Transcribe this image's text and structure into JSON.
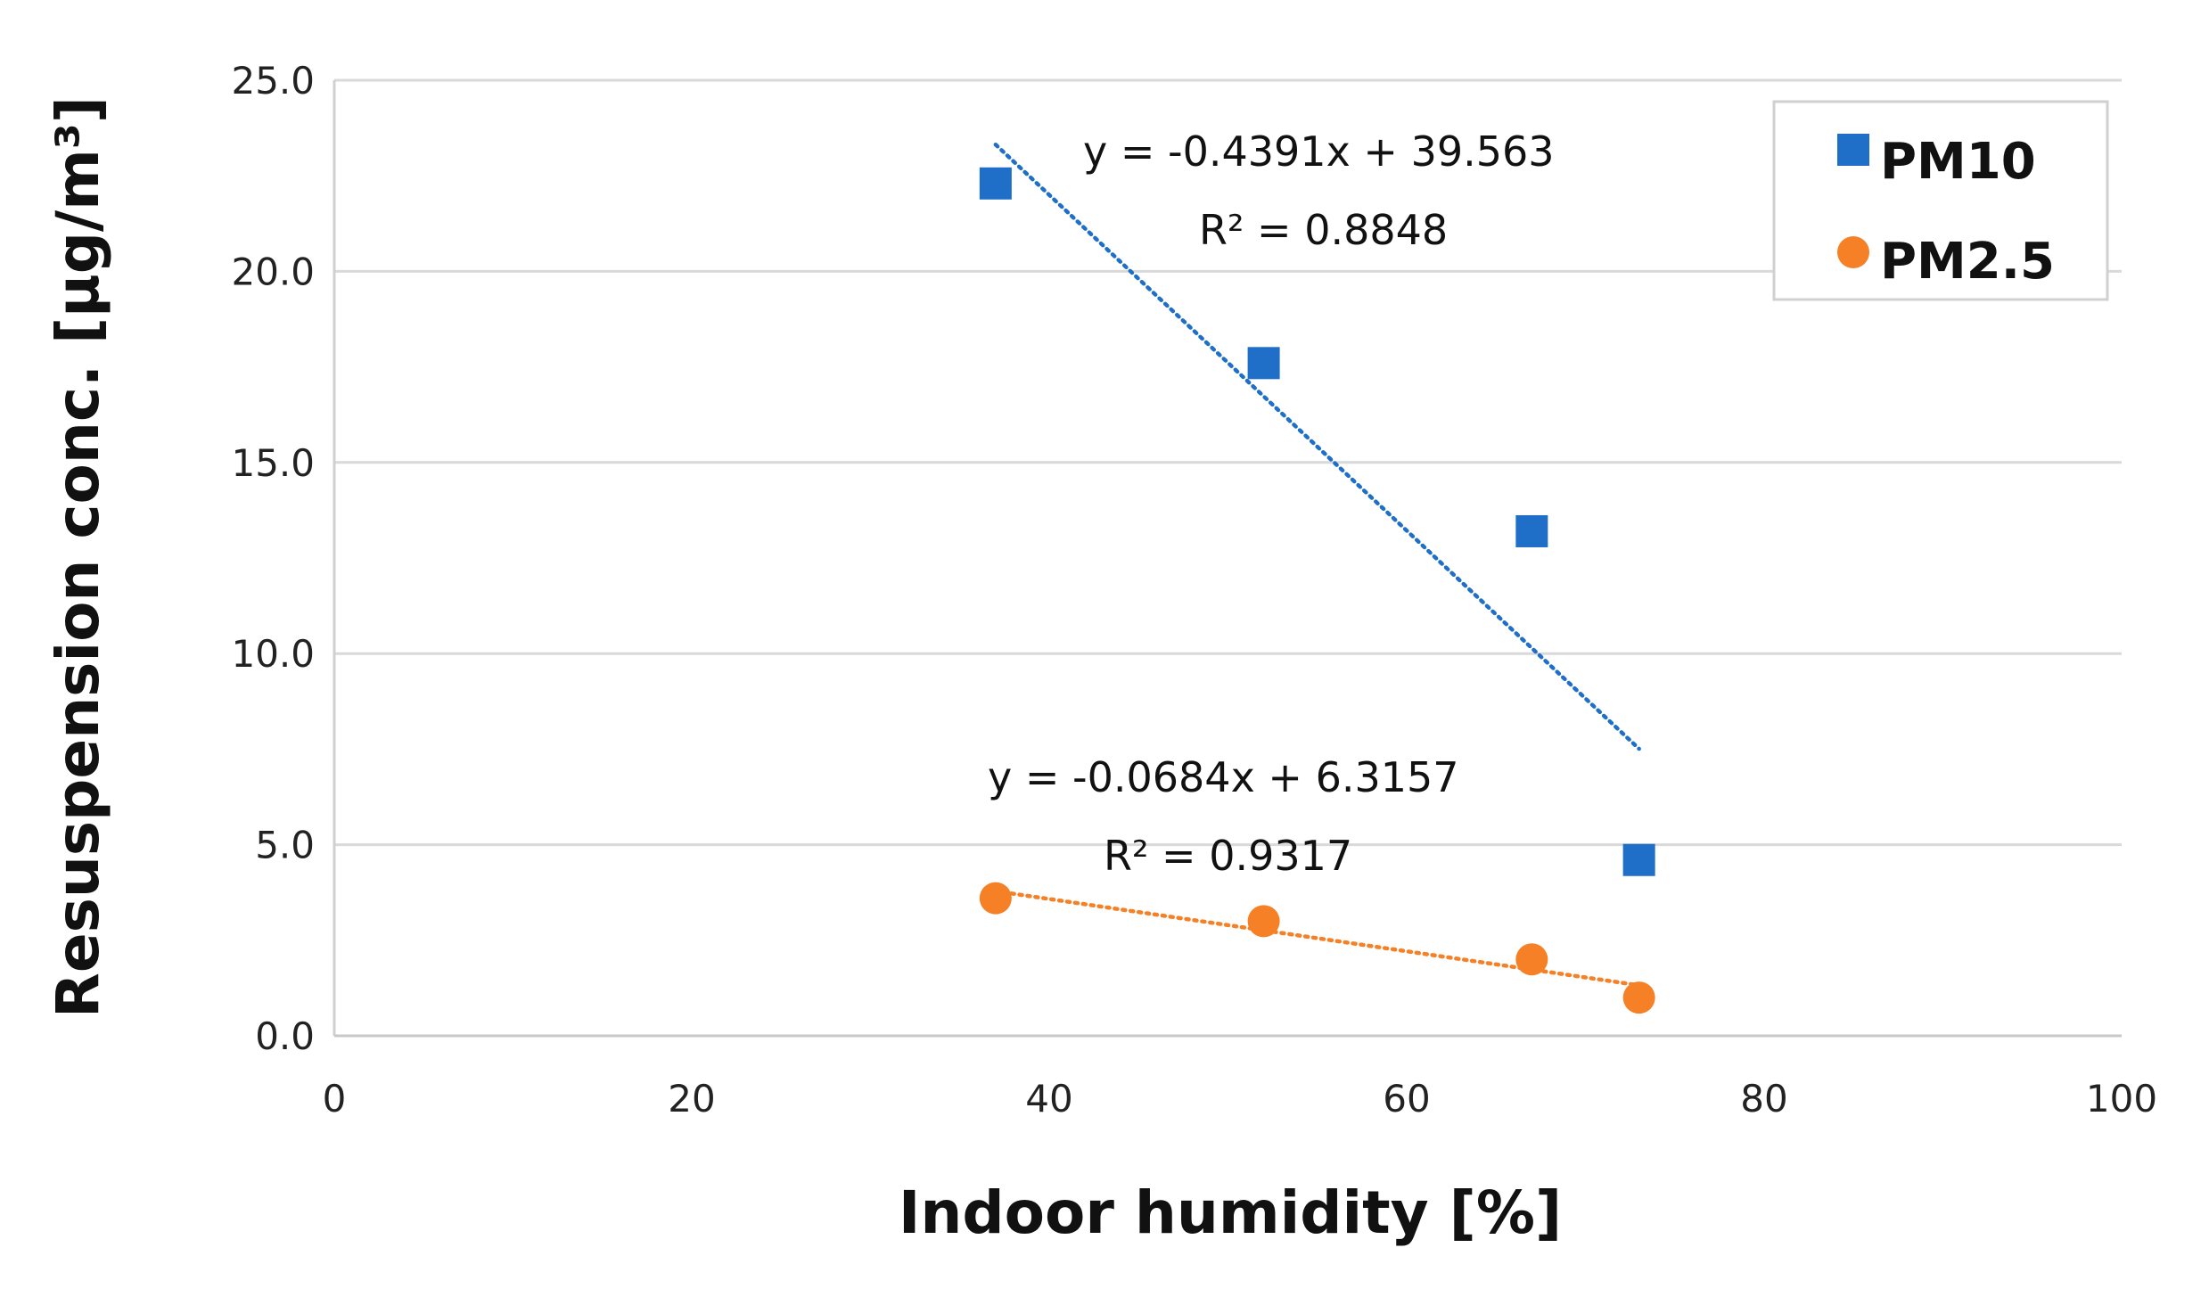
{
  "chart_data": {
    "type": "scatter",
    "title": "",
    "xlabel": "Indoor humidity [%]",
    "ylabel": "Resuspension conc. [μg/m³]",
    "xlim": [
      0,
      100
    ],
    "ylim": [
      0,
      25
    ],
    "xticks": [
      0,
      20,
      40,
      60,
      80,
      100
    ],
    "xtick_labels": [
      "0",
      "20",
      "40",
      "60",
      "80",
      "100"
    ],
    "yticks": [
      0,
      5,
      10,
      15,
      20,
      25
    ],
    "ytick_labels": [
      "0.0",
      "5.0",
      "10.0",
      "15.0",
      "20.0",
      "25.0"
    ],
    "grid": "horizontal",
    "legend_position": "top-right",
    "series": [
      {
        "name": "PM10",
        "marker": "square",
        "color": "#1f6fc9",
        "x": [
          37,
          52,
          67,
          73
        ],
        "y": [
          22.3,
          17.6,
          13.2,
          4.6
        ],
        "trendline": {
          "slope": -0.4391,
          "intercept": 39.563,
          "x_range": [
            37,
            73
          ],
          "equation": "y = -0.4391x + 39.563",
          "r2": "R² = 0.8848"
        }
      },
      {
        "name": "PM2.5",
        "marker": "circle",
        "color": "#f58025",
        "x": [
          37,
          52,
          67,
          73
        ],
        "y": [
          3.6,
          3.0,
          2.0,
          1.0
        ],
        "trendline": {
          "slope": -0.0684,
          "intercept": 6.3157,
          "x_range": [
            37,
            73
          ],
          "equation": "y = -0.0684x + 6.3157",
          "r2": "R² = 0.9317"
        }
      }
    ]
  }
}
